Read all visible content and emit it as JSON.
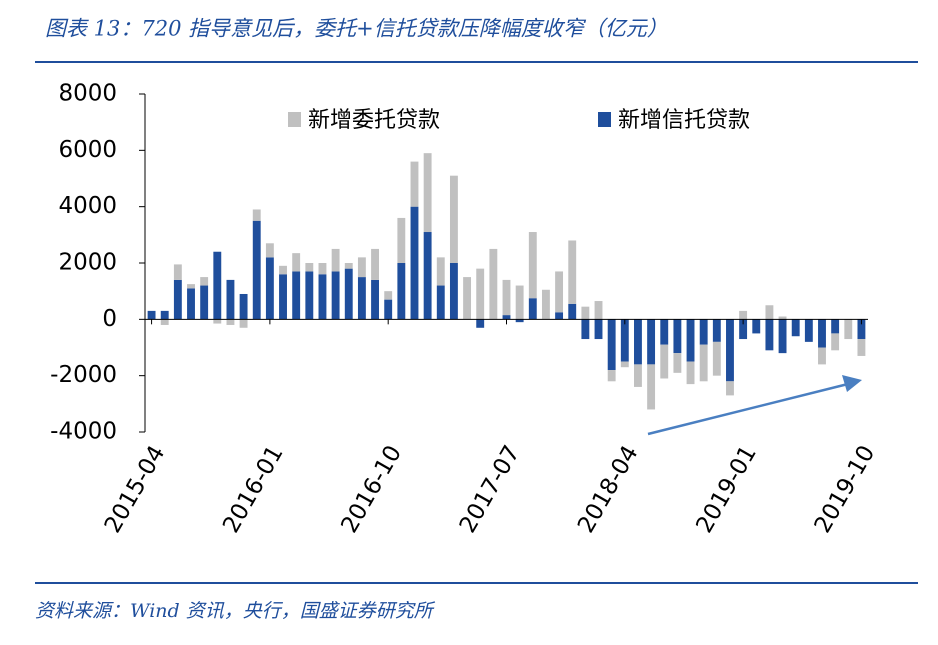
{
  "chart_data": {
    "type": "bar",
    "stacked": true,
    "title": "图表 13：720 指导意见后，委托+信托贷款压降幅度收窄（亿元）",
    "source": "资料来源：Wind 资讯，央行，国盛证券研究所",
    "categories": [
      "2015-04",
      null,
      null,
      null,
      null,
      null,
      null,
      null,
      null,
      "2016-01",
      null,
      null,
      null,
      null,
      null,
      null,
      null,
      null,
      "2016-10",
      null,
      null,
      null,
      null,
      null,
      null,
      null,
      null,
      "2017-07",
      null,
      null,
      null,
      null,
      null,
      null,
      null,
      null,
      "2018-04",
      null,
      null,
      null,
      null,
      null,
      null,
      null,
      null,
      "2019-01",
      null,
      null,
      null,
      null,
      null,
      null,
      null,
      null,
      "2019-10"
    ],
    "series": [
      {
        "name": "新增信托贷款",
        "color": "#1f4e9c",
        "values": [
          300,
          300,
          1400,
          1100,
          1200,
          2400,
          1400,
          900,
          3500,
          2200,
          1600,
          1700,
          1700,
          1600,
          1700,
          1800,
          1500,
          1400,
          700,
          2000,
          4000,
          3100,
          1200,
          2000,
          0,
          -300,
          0,
          150,
          -100,
          750,
          0,
          250,
          550,
          -700,
          -700,
          -1800,
          -1500,
          -1600,
          -1600,
          -900,
          -1200,
          -1500,
          -900,
          -800,
          -2200,
          -700,
          -500,
          -1100,
          -1200,
          -600,
          -800,
          -1000,
          -500,
          0,
          -700
        ]
      },
      {
        "name": "新增委托贷款",
        "color": "#c0c0c0",
        "values": [
          0,
          -200,
          550,
          150,
          300,
          -150,
          -200,
          -300,
          400,
          500,
          300,
          650,
          300,
          400,
          800,
          200,
          700,
          1100,
          300,
          1600,
          1600,
          2800,
          1000,
          3100,
          1500,
          1800,
          2500,
          1250,
          1200,
          2350,
          1050,
          1450,
          2250,
          450,
          650,
          -400,
          -200,
          -800,
          -1600,
          -1200,
          -700,
          -800,
          -1300,
          -1200,
          -500,
          300,
          0,
          500,
          100,
          0,
          0,
          -600,
          -600,
          -700,
          -600
        ]
      }
    ],
    "ylim": [
      -4000,
      8000
    ],
    "yticks": [
      8000,
      6000,
      4000,
      2000,
      0,
      -2000,
      -4000
    ]
  }
}
